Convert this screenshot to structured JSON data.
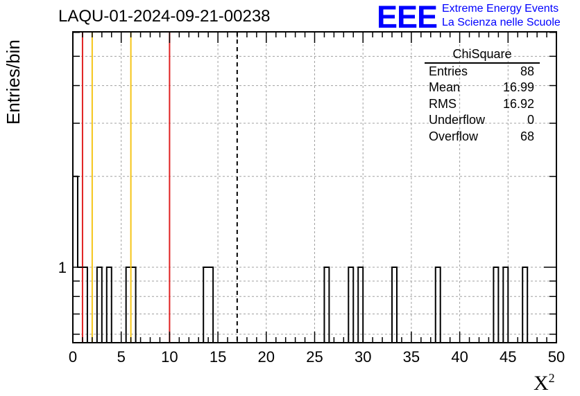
{
  "title": "LAQU-01-2024-09-21-00238",
  "logo": {
    "mark": "EEE",
    "line1": "Extreme Energy Events",
    "line2": "La Scienza nelle Scuole",
    "color": "#0000ff"
  },
  "stats": {
    "title": "ChiSquare",
    "rows": [
      {
        "label": "Entries",
        "value": "88"
      },
      {
        "label": "Mean",
        "value": "16.99"
      },
      {
        "label": "RMS",
        "value": "16.92"
      },
      {
        "label": "Underflow",
        "value": "0"
      },
      {
        "label": "Overflow",
        "value": "68"
      }
    ]
  },
  "chart_data": {
    "type": "bar",
    "xlabel": "X",
    "xlabel_superscript": "2",
    "ylabel": "Entries/bin",
    "xlim": [
      0,
      50
    ],
    "ylog": true,
    "grid": true,
    "x_ticks": [
      "0",
      "5",
      "10",
      "15",
      "20",
      "25",
      "30",
      "35",
      "40",
      "45",
      "50"
    ],
    "y_ticks": [
      "1"
    ],
    "bin_width": 0.5,
    "bins": [
      {
        "x": 0.0,
        "value": 2
      },
      {
        "x": 0.5,
        "value": 1
      },
      {
        "x": 1.0,
        "value": 1
      },
      {
        "x": 2.5,
        "value": 1
      },
      {
        "x": 3.5,
        "value": 1
      },
      {
        "x": 5.5,
        "value": 1
      },
      {
        "x": 6.0,
        "value": 1
      },
      {
        "x": 13.5,
        "value": 1
      },
      {
        "x": 14.0,
        "value": 1
      },
      {
        "x": 26.0,
        "value": 1
      },
      {
        "x": 28.5,
        "value": 1
      },
      {
        "x": 29.5,
        "value": 1
      },
      {
        "x": 33.0,
        "value": 1
      },
      {
        "x": 37.5,
        "value": 1
      },
      {
        "x": 43.5,
        "value": 1
      },
      {
        "x": 44.5,
        "value": 1
      },
      {
        "x": 46.5,
        "value": 1
      }
    ],
    "vertical_lines": [
      {
        "x": 1,
        "color": "#e02020",
        "style": "solid"
      },
      {
        "x": 2,
        "color": "#f5c518",
        "style": "solid"
      },
      {
        "x": 6,
        "color": "#f5c518",
        "style": "solid"
      },
      {
        "x": 10,
        "color": "#e02020",
        "style": "solid"
      },
      {
        "x": 16.99,
        "color": "#000000",
        "style": "dashed"
      }
    ]
  }
}
